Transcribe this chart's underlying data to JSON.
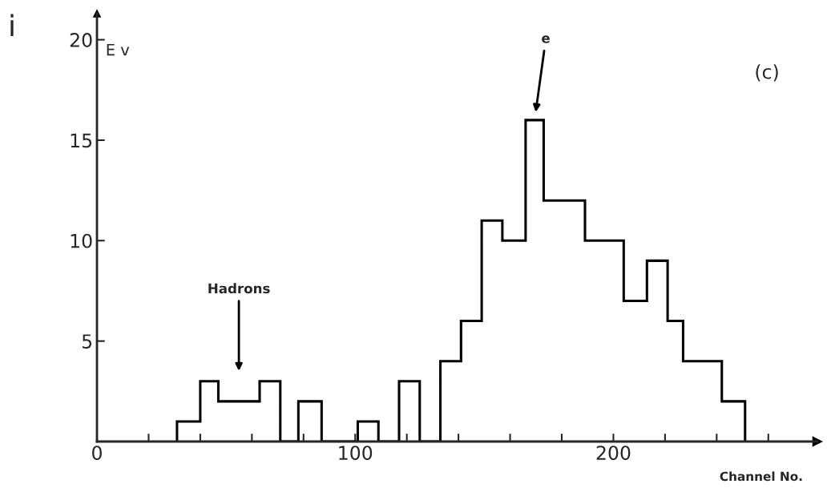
{
  "chart_data": {
    "type": "histogram",
    "bins": [
      31,
      40,
      47,
      55,
      63,
      71,
      78,
      87,
      101,
      109,
      117,
      125,
      133,
      141,
      149,
      157,
      166,
      173,
      189,
      204,
      213,
      221,
      227,
      242,
      251
    ],
    "values": [
      1,
      3,
      2,
      2,
      3,
      0,
      2,
      0,
      1,
      0,
      3,
      0,
      4,
      6,
      11,
      10,
      16,
      12,
      10,
      7,
      9,
      6,
      4,
      2
    ],
    "color": "#000000",
    "xlabel": "Channel No.",
    "ylabel": "E v",
    "xlim": [
      0,
      279
    ],
    "ylim": [
      0,
      21.3
    ],
    "xticks": [
      0,
      {
        "value": 20,
        "label": null
      },
      {
        "value": 40,
        "label": null
      },
      {
        "value": 60,
        "label": null
      },
      {
        "value": 80,
        "label": null
      },
      100,
      {
        "value": 120,
        "label": null
      },
      {
        "value": 140,
        "label": null
      },
      {
        "value": 160,
        "label": null
      },
      {
        "value": 180,
        "label": null
      },
      200,
      {
        "value": 220,
        "label": null
      },
      {
        "value": 240,
        "label": null
      },
      {
        "value": 260,
        "label": null
      }
    ],
    "yticks": [
      5,
      10,
      15,
      20
    ],
    "grid": false,
    "annotations": [
      "Hadrons",
      "e",
      "(c)",
      "i"
    ]
  }
}
